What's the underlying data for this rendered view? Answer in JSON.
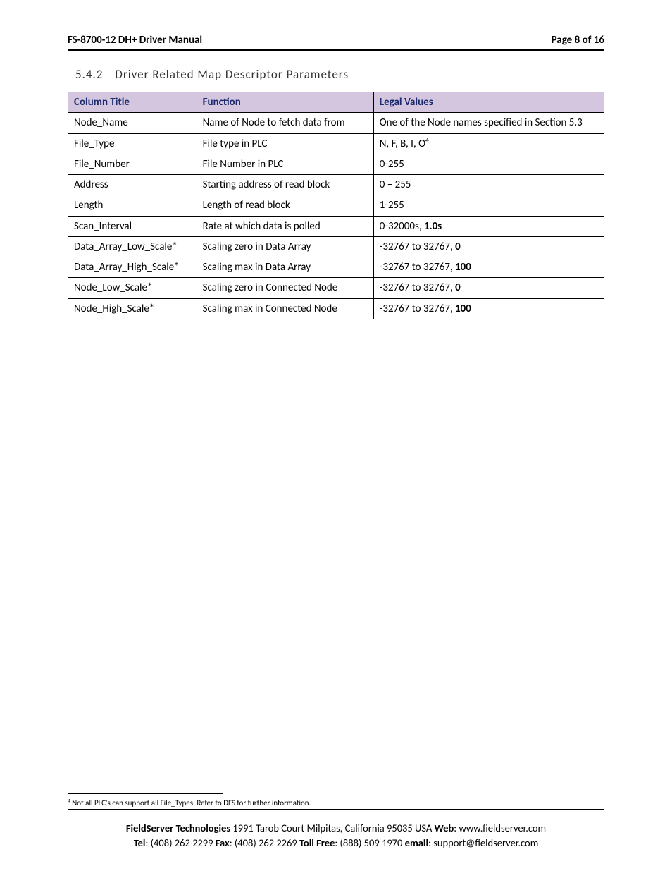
{
  "header": {
    "title": "FS-8700-12 DH+ Driver Manual",
    "page_label": "Page 8 of 16"
  },
  "section": {
    "number": "5.4.2",
    "title": "Driver Related Map Descriptor Parameters"
  },
  "table": {
    "head": {
      "col1": "Column Title",
      "col2": "Function",
      "col3": "Legal Values"
    },
    "header_bg": "#d5c6e0",
    "header_text_color": "#1f3a7a",
    "rows": [
      {
        "title": "Node_Name",
        "func": "Name of Node to fetch data from",
        "legal_pre": "One of the Node names specified in Section 5.3",
        "legal_bold": "",
        "sup": ""
      },
      {
        "title": "File_Type",
        "func": "File type in PLC",
        "legal_pre": "N, F, B, I, O",
        "legal_bold": "",
        "sup": "4"
      },
      {
        "title": "File_Number",
        "func": "File Number in PLC",
        "legal_pre": "0-255",
        "legal_bold": "",
        "sup": ""
      },
      {
        "title": "Address",
        "func": "Starting address of read block",
        "legal_pre": "0 – 255",
        "legal_bold": "",
        "sup": ""
      },
      {
        "title": "Length",
        "func": "Length of read block",
        "legal_pre": "1-255",
        "legal_bold": "",
        "sup": ""
      },
      {
        "title": "Scan_Interval",
        "func": "Rate at which data is polled",
        "legal_pre": "0-32000s, ",
        "legal_bold": "1.0s",
        "sup": ""
      },
      {
        "title": "Data_Array_Low_Scale*",
        "func": "Scaling zero in Data Array",
        "legal_pre": "-32767 to 32767, ",
        "legal_bold": "0",
        "sup": ""
      },
      {
        "title": "Data_Array_High_Scale*",
        "func": "Scaling max in Data Array",
        "legal_pre": "-32767 to 32767, ",
        "legal_bold": "100",
        "sup": ""
      },
      {
        "title": "Node_Low_Scale*",
        "func": "Scaling zero in Connected Node",
        "legal_pre": "-32767 to 32767, ",
        "legal_bold": "0",
        "sup": ""
      },
      {
        "title": "Node_High_Scale*",
        "func": "Scaling max in Connected Node",
        "legal_pre": "-32767 to 32767,  ",
        "legal_bold": "100",
        "sup": ""
      }
    ]
  },
  "footnote": {
    "mark": "4",
    "text": " Not all PLC's can support all File_Types.  Refer to DFS for further information."
  },
  "footer": {
    "line1": {
      "company": "FieldServer Technologies",
      "addr": " 1991 Tarob Court Milpitas, California 95035 USA   ",
      "web_label": "Web",
      "web_sep": ": ",
      "web": "www.fieldserver.com"
    },
    "line2": {
      "tel_label": "Tel",
      "tel": ": (408) 262 2299   ",
      "fax_label": "Fax",
      "fax": ": (408) 262 2269   ",
      "toll_label": "Toll Free",
      "toll": ": (888) 509 1970   ",
      "email_label": "email",
      "email": ": support@fieldserver.com"
    }
  }
}
